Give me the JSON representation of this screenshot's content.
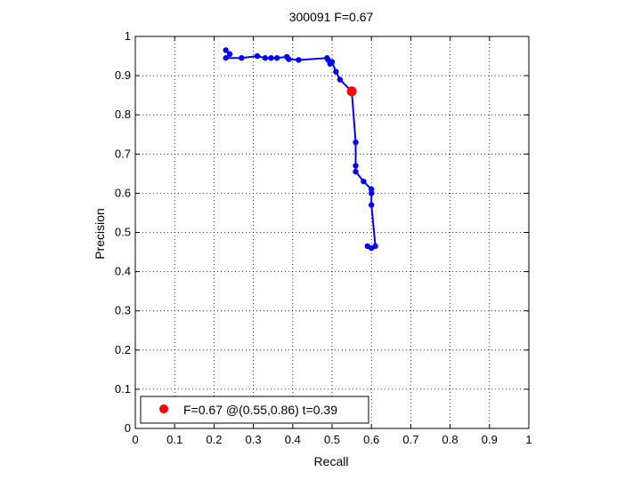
{
  "chart_data": {
    "type": "line",
    "title": "300091 F=0.67",
    "xlabel": "Recall",
    "ylabel": "Precision",
    "xlim": [
      0,
      1
    ],
    "ylim": [
      0,
      1
    ],
    "xticks": [
      "0",
      "0.1",
      "0.2",
      "0.3",
      "0.4",
      "0.5",
      "0.6",
      "0.7",
      "0.8",
      "0.9",
      "1"
    ],
    "yticks": [
      "0",
      "0.1",
      "0.2",
      "0.3",
      "0.4",
      "0.5",
      "0.6",
      "0.7",
      "0.8",
      "0.9",
      "1"
    ],
    "grid": true,
    "legend_position": "bottom-left",
    "series": [
      {
        "color": "#0000ff",
        "points": [
          [
            0.23,
            0.965
          ],
          [
            0.24,
            0.955
          ],
          [
            0.23,
            0.945
          ],
          [
            0.27,
            0.945
          ],
          [
            0.31,
            0.95
          ],
          [
            0.33,
            0.945
          ],
          [
            0.345,
            0.945
          ],
          [
            0.36,
            0.945
          ],
          [
            0.385,
            0.948
          ],
          [
            0.39,
            0.942
          ],
          [
            0.415,
            0.94
          ],
          [
            0.487,
            0.945
          ],
          [
            0.49,
            0.94
          ],
          [
            0.495,
            0.93
          ],
          [
            0.5,
            0.935
          ],
          [
            0.51,
            0.91
          ],
          [
            0.52,
            0.89
          ],
          [
            0.55,
            0.86
          ],
          [
            0.56,
            0.73
          ],
          [
            0.56,
            0.67
          ],
          [
            0.56,
            0.655
          ],
          [
            0.58,
            0.63
          ],
          [
            0.6,
            0.61
          ],
          [
            0.6,
            0.6
          ],
          [
            0.6,
            0.57
          ],
          [
            0.61,
            0.465
          ],
          [
            0.6,
            0.46
          ],
          [
            0.59,
            0.465
          ]
        ]
      }
    ],
    "best_point": {
      "recall": 0.55,
      "precision": 0.86,
      "color": "#ff0000"
    },
    "legend": {
      "label": "F=0.67 @(0.55,0.86) t=0.39",
      "marker_color": "#ff0000"
    }
  }
}
